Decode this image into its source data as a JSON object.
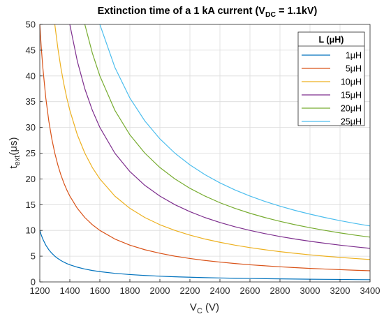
{
  "chart_data": {
    "type": "line",
    "title": {
      "main": "Extinction time of a 1 kA current (V",
      "sub": "DC",
      "tail": " = 1.1kV)"
    },
    "xlabel": {
      "main": "V",
      "sub": "C",
      "unit": " (V)"
    },
    "ylabel": {
      "main": "t",
      "sub": "ext",
      "unit": "(μs)"
    },
    "xlim": [
      1200,
      3400
    ],
    "ylim": [
      0,
      50
    ],
    "xticks": [
      1200,
      1400,
      1600,
      1800,
      2000,
      2200,
      2400,
      2600,
      2800,
      3000,
      3200,
      3400
    ],
    "yticks": [
      0,
      5,
      10,
      15,
      20,
      25,
      30,
      35,
      40,
      45,
      50
    ],
    "grid": true,
    "legend_title": "L (μH)",
    "legend_placement": "top-right",
    "x": [
      1200,
      1210,
      1220,
      1240,
      1260,
      1280,
      1300,
      1320,
      1340,
      1360,
      1380,
      1400,
      1450,
      1500,
      1550,
      1600,
      1700,
      1800,
      1900,
      2000,
      2100,
      2200,
      2300,
      2400,
      2500,
      2600,
      2700,
      2800,
      2900,
      3000,
      3100,
      3200,
      3300,
      3400
    ],
    "series": [
      {
        "name": "1μH",
        "color": "#0072BD",
        "values": [
          10.0,
          9.09,
          8.33,
          7.14,
          6.25,
          5.56,
          5.0,
          4.55,
          4.17,
          3.85,
          3.57,
          3.33,
          2.86,
          2.5,
          2.22,
          2.0,
          1.67,
          1.43,
          1.25,
          1.11,
          1.0,
          0.91,
          0.83,
          0.77,
          0.71,
          0.67,
          0.63,
          0.59,
          0.56,
          0.53,
          0.5,
          0.48,
          0.45,
          0.43
        ]
      },
      {
        "name": "5μH",
        "color": "#D95319",
        "values": [
          50.0,
          45.45,
          41.67,
          35.71,
          31.25,
          27.78,
          25.0,
          22.73,
          20.83,
          19.23,
          17.86,
          16.67,
          14.29,
          12.5,
          11.11,
          10.0,
          8.33,
          7.14,
          6.25,
          5.56,
          5.0,
          4.55,
          4.17,
          3.85,
          3.57,
          3.33,
          3.13,
          2.94,
          2.78,
          2.63,
          2.5,
          2.38,
          2.27,
          2.17
        ]
      },
      {
        "name": "10μH",
        "color": "#EDB120",
        "values": [
          null,
          null,
          null,
          null,
          null,
          null,
          50.0,
          45.45,
          41.67,
          38.46,
          35.71,
          33.33,
          28.57,
          25.0,
          22.22,
          20.0,
          16.67,
          14.29,
          12.5,
          11.11,
          10.0,
          9.09,
          8.33,
          7.69,
          7.14,
          6.67,
          6.25,
          5.88,
          5.56,
          5.26,
          5.0,
          4.76,
          4.55,
          4.35
        ]
      },
      {
        "name": "15μH",
        "color": "#7E2F8E",
        "values": [
          null,
          null,
          null,
          null,
          null,
          null,
          null,
          null,
          null,
          null,
          null,
          50.0,
          42.86,
          37.5,
          33.33,
          30.0,
          25.0,
          21.43,
          18.75,
          16.67,
          15.0,
          13.64,
          12.5,
          11.54,
          10.71,
          10.0,
          9.38,
          8.82,
          8.33,
          7.89,
          7.5,
          7.14,
          6.82,
          6.52
        ]
      },
      {
        "name": "20μH",
        "color": "#77AC30",
        "values": [
          null,
          null,
          null,
          null,
          null,
          null,
          null,
          null,
          null,
          null,
          null,
          null,
          null,
          50.0,
          44.44,
          40.0,
          33.33,
          28.57,
          25.0,
          22.22,
          20.0,
          18.18,
          16.67,
          15.38,
          14.29,
          13.33,
          12.5,
          11.76,
          11.11,
          10.53,
          10.0,
          9.52,
          9.09,
          8.7
        ]
      },
      {
        "name": "25μH",
        "color": "#4DBEEE",
        "values": [
          null,
          null,
          null,
          null,
          null,
          null,
          null,
          null,
          null,
          null,
          null,
          null,
          null,
          null,
          null,
          50.0,
          41.67,
          35.71,
          31.25,
          27.78,
          25.0,
          22.73,
          20.83,
          19.23,
          17.86,
          16.67,
          15.63,
          14.71,
          13.89,
          13.16,
          12.5,
          11.9,
          11.36,
          10.87
        ]
      }
    ]
  }
}
